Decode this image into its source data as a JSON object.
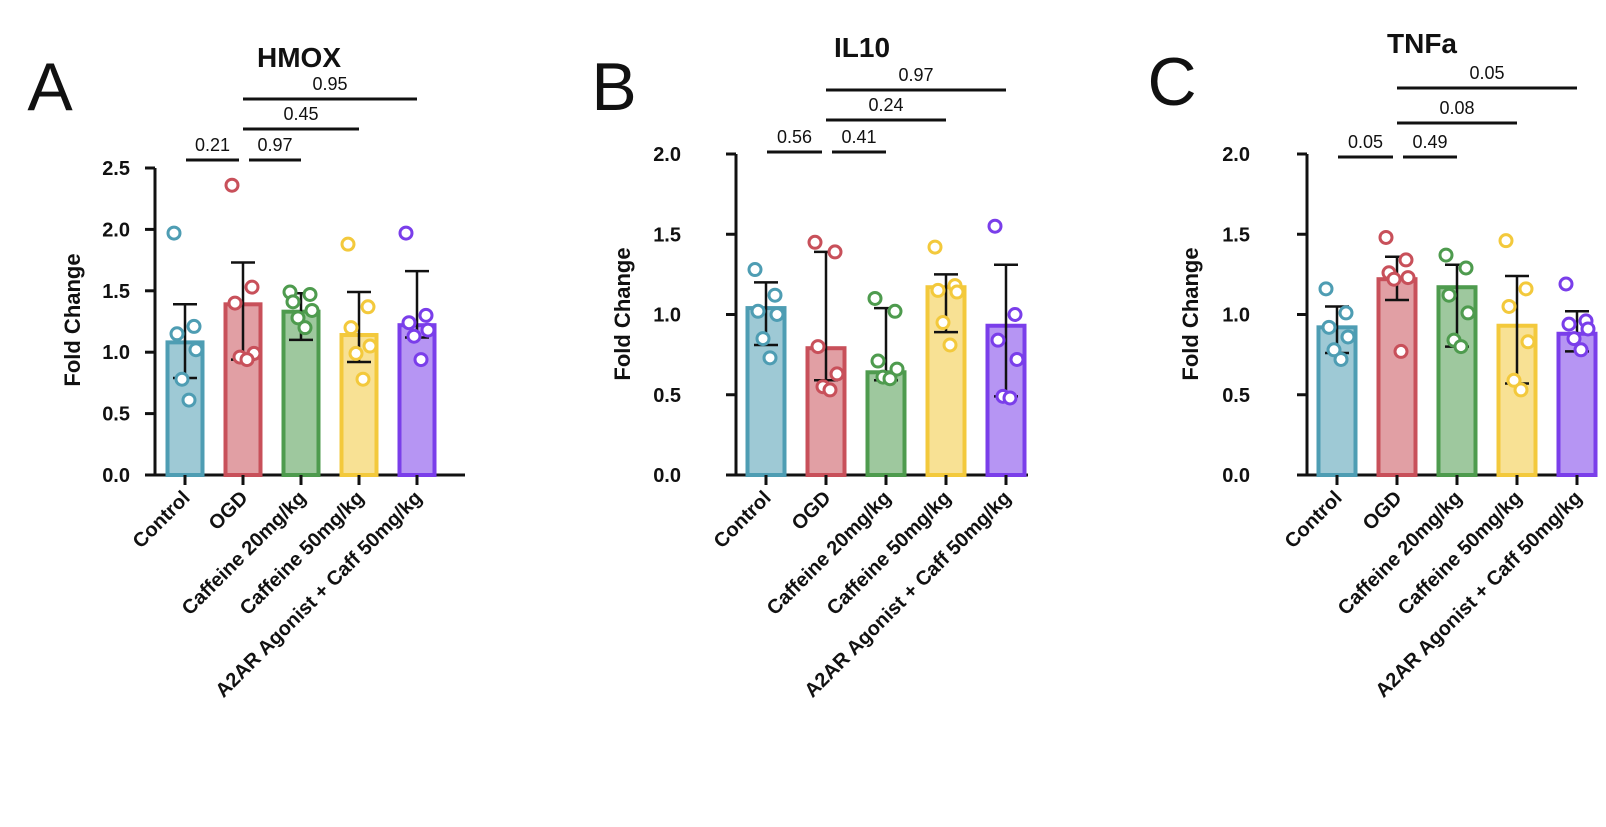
{
  "figure": {
    "panels": [
      {
        "letter": "A",
        "title": "HMOX",
        "ylabel": "Fold Change"
      },
      {
        "letter": "B",
        "title": "IL10",
        "ylabel": "Fold Change"
      },
      {
        "letter": "C",
        "title": "TNFa",
        "ylabel": "Fold Change"
      }
    ]
  },
  "chart_data": [
    {
      "type": "bar",
      "panel_letter": "A",
      "title": "HMOX",
      "xlabel": "",
      "ylabel": "Fold Change",
      "ylim": [
        0,
        2.5
      ],
      "yticks": [
        0.0,
        0.5,
        1.0,
        1.5,
        2.0,
        2.5
      ],
      "ytick_labels": [
        "0.0",
        "0.5",
        "1.0",
        "1.5",
        "2.0",
        "2.5"
      ],
      "grid": false,
      "categories": [
        "Control",
        "OGD",
        "Caffeine 20mg/kg",
        "Caffeine 50mg/kg",
        "A2AR Agonist + Caff 50mg/kg"
      ],
      "colors": [
        "#4E9DB3",
        "#C8505A",
        "#4E9B4E",
        "#F3C93C",
        "#7A3EEA"
      ],
      "values": [
        1.08,
        1.39,
        1.33,
        1.14,
        1.22
      ],
      "error_low": [
        0.79,
        0.94,
        1.1,
        0.92,
        1.12
      ],
      "error_high": [
        1.39,
        1.73,
        1.48,
        1.49,
        1.66
      ],
      "points": [
        [
          1.97,
          1.21,
          1.15,
          1.02,
          0.78,
          0.61
        ],
        [
          2.36,
          1.53,
          1.4,
          0.99,
          0.96,
          0.94
        ],
        [
          1.49,
          1.47,
          1.41,
          1.34,
          1.28,
          1.2
        ],
        [
          1.88,
          1.37,
          1.2,
          1.05,
          0.99,
          0.78
        ],
        [
          1.97,
          1.3,
          1.24,
          1.18,
          1.13,
          0.94
        ]
      ],
      "comparisons": [
        {
          "from": "Control",
          "to": "OGD",
          "label": "0.21"
        },
        {
          "from": "OGD",
          "to": "Caffeine 20mg/kg",
          "label": "0.97"
        },
        {
          "from": "OGD",
          "to": "Caffeine 50mg/kg",
          "label": "0.45"
        },
        {
          "from": "OGD",
          "to": "A2AR Agonist + Caff 50mg/kg",
          "label": "0.95"
        }
      ]
    },
    {
      "type": "bar",
      "panel_letter": "B",
      "title": "IL10",
      "xlabel": "",
      "ylabel": "Fold Change",
      "ylim": [
        0,
        2.0
      ],
      "yticks": [
        0.0,
        0.5,
        1.0,
        1.5,
        2.0
      ],
      "ytick_labels": [
        "0.0",
        "0.5",
        "1.0",
        "1.5",
        "2.0"
      ],
      "grid": false,
      "categories": [
        "Control",
        "OGD",
        "Caffeine 20mg/kg",
        "Caffeine 50mg/kg",
        "A2AR Agonist + Caff 50mg/kg"
      ],
      "colors": [
        "#4E9DB3",
        "#C8505A",
        "#4E9B4E",
        "#F3C93C",
        "#7A3EEA"
      ],
      "values": [
        1.04,
        0.79,
        0.64,
        1.17,
        0.93
      ],
      "error_low": [
        0.81,
        0.59,
        0.59,
        0.89,
        0.49
      ],
      "error_high": [
        1.2,
        1.39,
        1.04,
        1.25,
        1.31
      ],
      "points": [
        [
          1.28,
          1.12,
          1.02,
          1.0,
          0.85,
          0.73
        ],
        [
          1.45,
          1.39,
          0.8,
          0.63,
          0.55,
          0.53
        ],
        [
          1.1,
          1.02,
          0.71,
          0.66,
          0.61,
          0.6
        ],
        [
          1.42,
          1.18,
          1.15,
          1.14,
          0.95,
          0.81
        ],
        [
          1.55,
          1.0,
          0.84,
          0.72,
          0.49,
          0.48
        ]
      ],
      "comparisons": [
        {
          "from": "Control",
          "to": "OGD",
          "label": "0.56"
        },
        {
          "from": "OGD",
          "to": "Caffeine 20mg/kg",
          "label": "0.41"
        },
        {
          "from": "OGD",
          "to": "Caffeine 50mg/kg",
          "label": "0.24"
        },
        {
          "from": "OGD",
          "to": "A2AR Agonist + Caff 50mg/kg",
          "label": "0.97"
        }
      ]
    },
    {
      "type": "bar",
      "panel_letter": "C",
      "title": "TNFa",
      "xlabel": "",
      "ylabel": "Fold Change",
      "ylim": [
        0,
        2.0
      ],
      "yticks": [
        0.0,
        0.5,
        1.0,
        1.5,
        2.0
      ],
      "ytick_labels": [
        "0.0",
        "0.5",
        "1.0",
        "1.5",
        "2.0"
      ],
      "grid": false,
      "categories": [
        "Control",
        "OGD",
        "Caffeine 20mg/kg",
        "Caffeine 50mg/kg",
        "A2AR Agonist + Caff 50mg/kg"
      ],
      "colors": [
        "#4E9DB3",
        "#C8505A",
        "#4E9B4E",
        "#F3C93C",
        "#7A3EEA"
      ],
      "values": [
        0.92,
        1.22,
        1.17,
        0.93,
        0.88
      ],
      "error_low": [
        0.76,
        1.09,
        0.8,
        0.57,
        0.77
      ],
      "error_high": [
        1.05,
        1.36,
        1.31,
        1.24,
        1.02
      ],
      "points": [
        [
          1.16,
          1.01,
          0.92,
          0.86,
          0.78,
          0.72
        ],
        [
          1.48,
          1.34,
          1.26,
          1.23,
          1.22,
          0.77
        ],
        [
          1.37,
          1.29,
          1.12,
          1.01,
          0.84,
          0.8
        ],
        [
          1.46,
          1.16,
          1.05,
          0.83,
          0.59,
          0.53
        ],
        [
          1.19,
          0.96,
          0.94,
          0.91,
          0.85,
          0.78
        ]
      ],
      "comparisons": [
        {
          "from": "Control",
          "to": "OGD",
          "label": "0.05"
        },
        {
          "from": "OGD",
          "to": "Caffeine 20mg/kg",
          "label": "0.49"
        },
        {
          "from": "OGD",
          "to": "Caffeine 50mg/kg",
          "label": "0.08"
        },
        {
          "from": "OGD",
          "to": "A2AR Agonist + Caff 50mg/kg",
          "label": "0.05"
        }
      ]
    }
  ]
}
